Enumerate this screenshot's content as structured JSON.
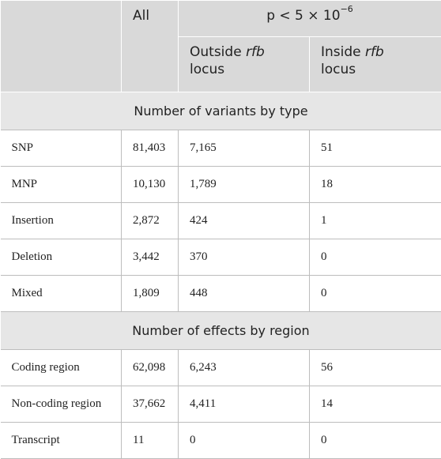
{
  "table": {
    "header": {
      "all": "All",
      "p_value": {
        "base": "p < 5 × 10",
        "exponent": "−6"
      },
      "outside": [
        "Outside",
        "rfb",
        "locus"
      ],
      "inside": [
        "Inside",
        "rfb",
        "locus"
      ]
    },
    "sections": [
      {
        "title": "Number of variants by type",
        "rows": [
          [
            "SNP",
            "81,403",
            "7,165",
            "51"
          ],
          [
            "MNP",
            "10,130",
            "1,789",
            "18"
          ],
          [
            "Insertion",
            "2,872",
            "424",
            "1"
          ],
          [
            "Deletion",
            "3,442",
            "370",
            "0"
          ],
          [
            "Mixed",
            "1,809",
            "448",
            "0"
          ]
        ]
      },
      {
        "title": "Number of effects by region",
        "rows": [
          [
            "Coding region",
            "62,098",
            "6,243",
            "56"
          ],
          [
            "Non-coding region",
            "37,662",
            "4,411",
            "14"
          ],
          [
            "Transcript",
            "11",
            "0",
            "0"
          ]
        ]
      }
    ]
  }
}
